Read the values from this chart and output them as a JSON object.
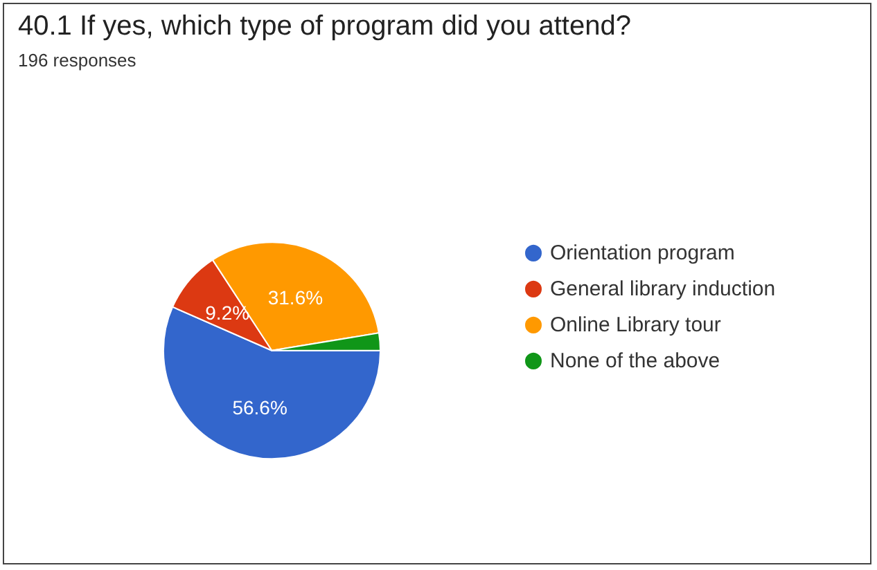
{
  "chart_data": {
    "type": "pie",
    "title": "40.1 If yes, which type of program did you attend?",
    "subtitle": "196 responses",
    "categories": [
      "Orientation program",
      "General library induction",
      "Online Library tour",
      "None of the above"
    ],
    "values": [
      56.6,
      9.2,
      31.6,
      2.6
    ],
    "colors": [
      "#3366cc",
      "#dc3912",
      "#ff9900",
      "#109618"
    ],
    "value_labels": [
      "56.6%",
      "9.2%",
      "31.6%",
      null
    ],
    "legend": "right"
  }
}
